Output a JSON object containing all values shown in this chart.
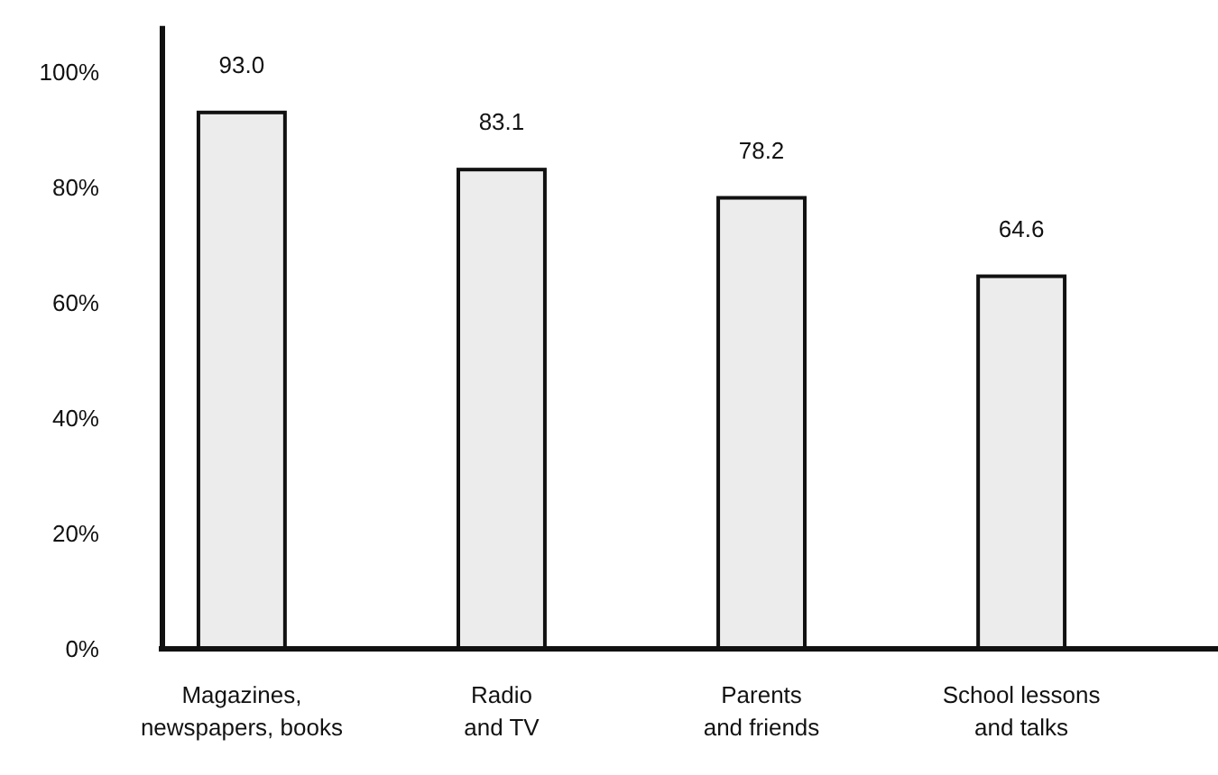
{
  "chart_data": {
    "type": "bar",
    "categories": [
      "Magazines,\nnewspapers, books",
      "Radio\nand TV",
      "Parents\nand friends",
      "School lessons\nand talks"
    ],
    "values": [
      93.0,
      83.1,
      78.2,
      64.6
    ],
    "color": "#ececec",
    "ylim": [
      0,
      108
    ],
    "yticks": [
      {
        "value": 0,
        "label": "0%"
      },
      {
        "value": 20,
        "label": "20%"
      },
      {
        "value": 40,
        "label": "40%"
      },
      {
        "value": 60,
        "label": "60%"
      },
      {
        "value": 80,
        "label": "80%"
      },
      {
        "value": 100,
        "label": "100%"
      }
    ],
    "data_labels": true,
    "value_labels": [
      "93.0",
      "83.1",
      "78.2",
      "64.6"
    ],
    "grid": false
  }
}
